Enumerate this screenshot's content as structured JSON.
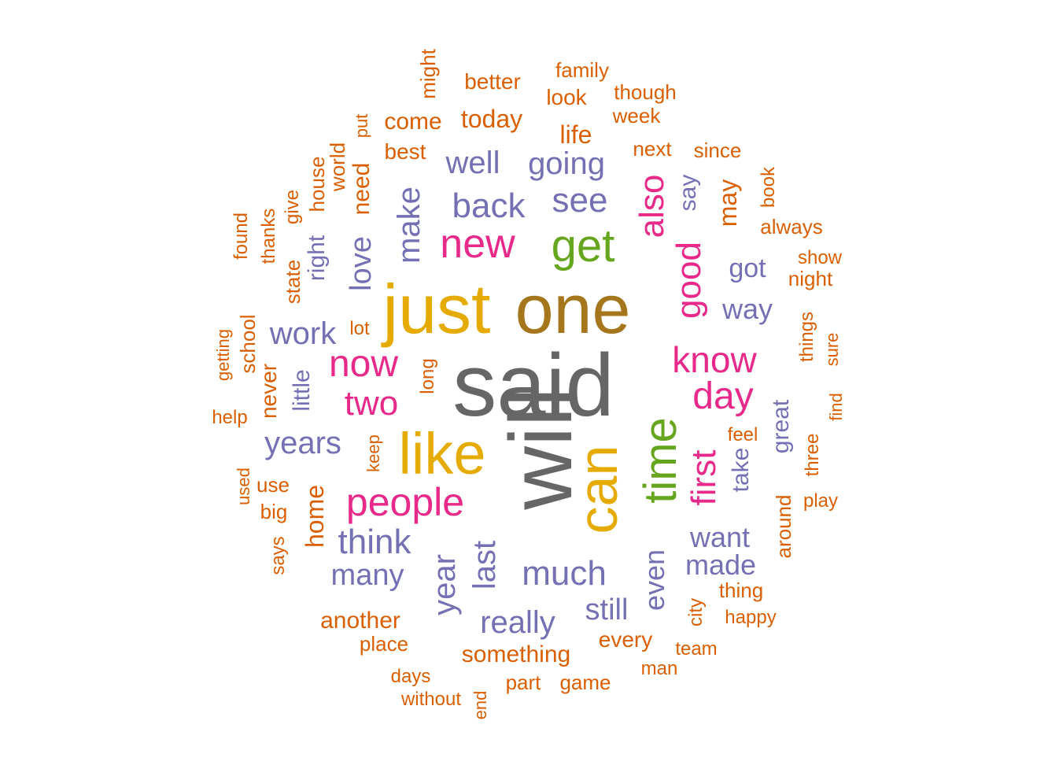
{
  "colors": {
    "gray": "#666666",
    "brown": "#a6761d",
    "gold": "#e6ab02",
    "green": "#66a61e",
    "magenta": "#e7298a",
    "purple": "#7570b3",
    "orange": "#d95f02"
  },
  "words": [
    {
      "text": "said",
      "color": "gray"
    },
    {
      "text": "will",
      "color": "gray"
    },
    {
      "text": "one",
      "color": "brown"
    },
    {
      "text": "just",
      "color": "gold"
    },
    {
      "text": "like",
      "color": "gold"
    },
    {
      "text": "can",
      "color": "gold"
    },
    {
      "text": "time",
      "color": "green"
    },
    {
      "text": "get",
      "color": "green"
    },
    {
      "text": "new",
      "color": "magenta"
    },
    {
      "text": "now",
      "color": "magenta"
    },
    {
      "text": "people",
      "color": "magenta"
    },
    {
      "text": "know",
      "color": "magenta"
    },
    {
      "text": "day",
      "color": "magenta"
    },
    {
      "text": "also",
      "color": "magenta"
    },
    {
      "text": "good",
      "color": "magenta"
    },
    {
      "text": "first",
      "color": "magenta"
    },
    {
      "text": "two",
      "color": "magenta"
    },
    {
      "text": "back",
      "color": "purple"
    },
    {
      "text": "see",
      "color": "purple"
    },
    {
      "text": "going",
      "color": "purple"
    },
    {
      "text": "well",
      "color": "purple"
    },
    {
      "text": "make",
      "color": "purple"
    },
    {
      "text": "love",
      "color": "purple"
    },
    {
      "text": "work",
      "color": "purple"
    },
    {
      "text": "years",
      "color": "purple"
    },
    {
      "text": "think",
      "color": "purple"
    },
    {
      "text": "many",
      "color": "purple"
    },
    {
      "text": "year",
      "color": "purple"
    },
    {
      "text": "last",
      "color": "purple"
    },
    {
      "text": "much",
      "color": "purple"
    },
    {
      "text": "really",
      "color": "purple"
    },
    {
      "text": "still",
      "color": "purple"
    },
    {
      "text": "even",
      "color": "purple"
    },
    {
      "text": "want",
      "color": "purple"
    },
    {
      "text": "made",
      "color": "purple"
    },
    {
      "text": "way",
      "color": "purple"
    },
    {
      "text": "got",
      "color": "purple"
    },
    {
      "text": "take",
      "color": "purple"
    },
    {
      "text": "great",
      "color": "purple"
    },
    {
      "text": "say",
      "color": "purple"
    },
    {
      "text": "right",
      "color": "purple"
    },
    {
      "text": "little",
      "color": "purple"
    },
    {
      "text": "need",
      "color": "orange"
    },
    {
      "text": "life",
      "color": "orange"
    },
    {
      "text": "today",
      "color": "orange"
    },
    {
      "text": "come",
      "color": "orange"
    },
    {
      "text": "best",
      "color": "orange"
    },
    {
      "text": "better",
      "color": "orange"
    },
    {
      "text": "look",
      "color": "orange"
    },
    {
      "text": "family",
      "color": "orange"
    },
    {
      "text": "though",
      "color": "orange"
    },
    {
      "text": "week",
      "color": "orange"
    },
    {
      "text": "next",
      "color": "orange"
    },
    {
      "text": "since",
      "color": "orange"
    },
    {
      "text": "might",
      "color": "orange"
    },
    {
      "text": "put",
      "color": "orange"
    },
    {
      "text": "world",
      "color": "orange"
    },
    {
      "text": "house",
      "color": "orange"
    },
    {
      "text": "give",
      "color": "orange"
    },
    {
      "text": "thanks",
      "color": "orange"
    },
    {
      "text": "found",
      "color": "orange"
    },
    {
      "text": "state",
      "color": "orange"
    },
    {
      "text": "may",
      "color": "orange"
    },
    {
      "text": "book",
      "color": "orange"
    },
    {
      "text": "always",
      "color": "orange"
    },
    {
      "text": "show",
      "color": "orange"
    },
    {
      "text": "night",
      "color": "orange"
    },
    {
      "text": "things",
      "color": "orange"
    },
    {
      "text": "sure",
      "color": "orange"
    },
    {
      "text": "find",
      "color": "orange"
    },
    {
      "text": "feel",
      "color": "orange"
    },
    {
      "text": "three",
      "color": "orange"
    },
    {
      "text": "play",
      "color": "orange"
    },
    {
      "text": "around",
      "color": "orange"
    },
    {
      "text": "thing",
      "color": "orange"
    },
    {
      "text": "happy",
      "color": "orange"
    },
    {
      "text": "city",
      "color": "orange"
    },
    {
      "text": "team",
      "color": "orange"
    },
    {
      "text": "man",
      "color": "orange"
    },
    {
      "text": "every",
      "color": "orange"
    },
    {
      "text": "something",
      "color": "orange"
    },
    {
      "text": "part",
      "color": "orange"
    },
    {
      "text": "game",
      "color": "orange"
    },
    {
      "text": "end",
      "color": "orange"
    },
    {
      "text": "without",
      "color": "orange"
    },
    {
      "text": "days",
      "color": "orange"
    },
    {
      "text": "place",
      "color": "orange"
    },
    {
      "text": "another",
      "color": "orange"
    },
    {
      "text": "home",
      "color": "orange"
    },
    {
      "text": "says",
      "color": "orange"
    },
    {
      "text": "big",
      "color": "orange"
    },
    {
      "text": "use",
      "color": "orange"
    },
    {
      "text": "used",
      "color": "orange"
    },
    {
      "text": "keep",
      "color": "orange"
    },
    {
      "text": "long",
      "color": "orange"
    },
    {
      "text": "lot",
      "color": "orange"
    },
    {
      "text": "never",
      "color": "orange"
    },
    {
      "text": "school",
      "color": "orange"
    },
    {
      "text": "getting",
      "color": "orange"
    },
    {
      "text": "help",
      "color": "orange"
    }
  ]
}
